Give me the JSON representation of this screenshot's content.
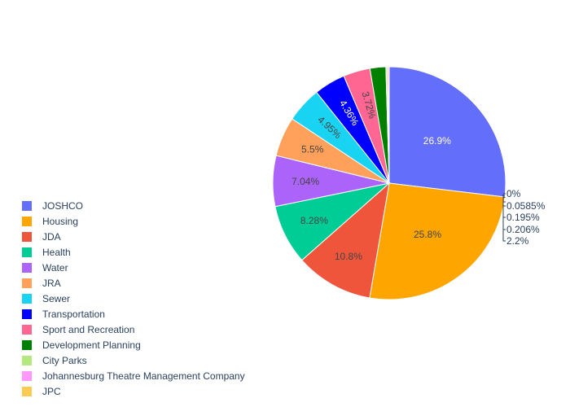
{
  "chart_data": {
    "type": "pie",
    "title": "",
    "categories": [
      "JOSHCO",
      "Housing",
      "JDA",
      "Health",
      "Water",
      "JRA",
      "Sewer",
      "Transportation",
      "Sport and Recreation",
      "Development Planning",
      "City Parks",
      "Johannesburg Theatre Management Company",
      "JPC"
    ],
    "values": [
      26.9,
      25.8,
      10.8,
      8.28,
      7.04,
      5.5,
      4.95,
      4.36,
      3.72,
      2.2,
      0.206,
      0.195,
      0.0585
    ],
    "slice_order": [
      0,
      1,
      2,
      3,
      4,
      5,
      6,
      7,
      8,
      9,
      10,
      11,
      12
    ],
    "labels": [
      "26.9%",
      "25.8%",
      "10.8%",
      "8.28%",
      "7.04%",
      "5.5%",
      "4.95%",
      "4.36%",
      "3.72%",
      "2.2%",
      "0.206%",
      "0.195%",
      "0.0585%"
    ],
    "zero_label": "0%",
    "colors": [
      "#636efa",
      "#FFA500",
      "#EF553B",
      "#00cc96",
      "#ab63fa",
      "#FFA15A",
      "#19d3f3",
      "#0000FF",
      "#FF6692",
      "#008000",
      "#B6E880",
      "#FF97FF",
      "#FECB52"
    ],
    "legend_position": "bottom-left",
    "direction": "clockwise"
  }
}
